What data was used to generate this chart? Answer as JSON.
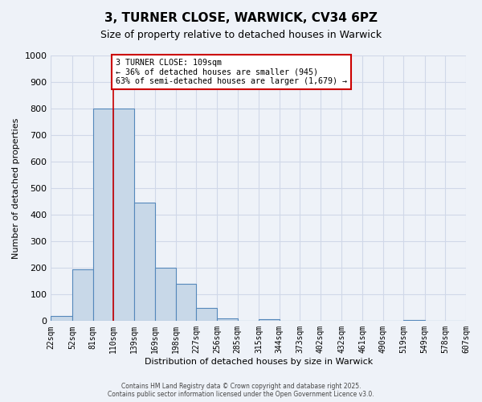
{
  "title_line1": "3, TURNER CLOSE, WARWICK, CV34 6PZ",
  "title_line2": "Size of property relative to detached houses in Warwick",
  "xlabel": "Distribution of detached houses by size in Warwick",
  "ylabel": "Number of detached properties",
  "bin_edges": [
    22,
    52,
    81,
    110,
    139,
    169,
    198,
    227,
    256,
    285,
    315,
    344,
    373,
    402,
    432,
    461,
    490,
    519,
    549,
    578,
    607
  ],
  "bin_labels": [
    "22sqm",
    "52sqm",
    "81sqm",
    "110sqm",
    "139sqm",
    "169sqm",
    "198sqm",
    "227sqm",
    "256sqm",
    "285sqm",
    "315sqm",
    "344sqm",
    "373sqm",
    "402sqm",
    "432sqm",
    "461sqm",
    "490sqm",
    "519sqm",
    "549sqm",
    "578sqm",
    "607sqm"
  ],
  "counts": [
    20,
    195,
    800,
    800,
    445,
    200,
    140,
    48,
    10,
    0,
    8,
    0,
    0,
    0,
    0,
    0,
    0,
    3,
    0,
    0
  ],
  "bar_facecolor": "#c8d8e8",
  "bar_edgecolor": "#5588bb",
  "grid_color": "#d0d8e8",
  "property_line_x": 110,
  "property_line_color": "#cc0000",
  "annotation_text": "3 TURNER CLOSE: 109sqm\n← 36% of detached houses are smaller (945)\n63% of semi-detached houses are larger (1,679) →",
  "annotation_box_edgecolor": "#cc0000",
  "annotation_box_facecolor": "#ffffff",
  "ylim": [
    0,
    1000
  ],
  "yticks": [
    0,
    100,
    200,
    300,
    400,
    500,
    600,
    700,
    800,
    900,
    1000
  ],
  "background_color": "#eef2f8",
  "footer_line1": "Contains HM Land Registry data © Crown copyright and database right 2025.",
  "footer_line2": "Contains public sector information licensed under the Open Government Licence v3.0."
}
